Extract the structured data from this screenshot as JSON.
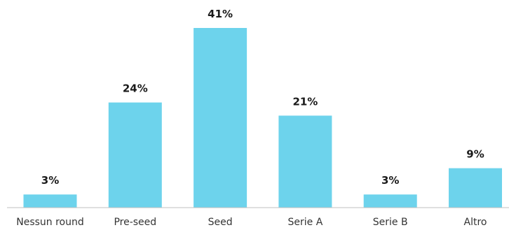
{
  "chart_data": {
    "type": "bar",
    "categories": [
      "Nessun round",
      "Pre-seed",
      "Seed",
      "Serie A",
      "Serie B",
      "Altro"
    ],
    "values": [
      3,
      24,
      41,
      21,
      3,
      9
    ],
    "data_labels": [
      "3%",
      "24%",
      "41%",
      "21%",
      "3%",
      "9%"
    ],
    "unit": "%",
    "ylim": [
      0,
      41
    ],
    "grid": false,
    "legend": "none",
    "bar_color": "#6dd3ec",
    "axis_color": "#bfbfbf"
  }
}
